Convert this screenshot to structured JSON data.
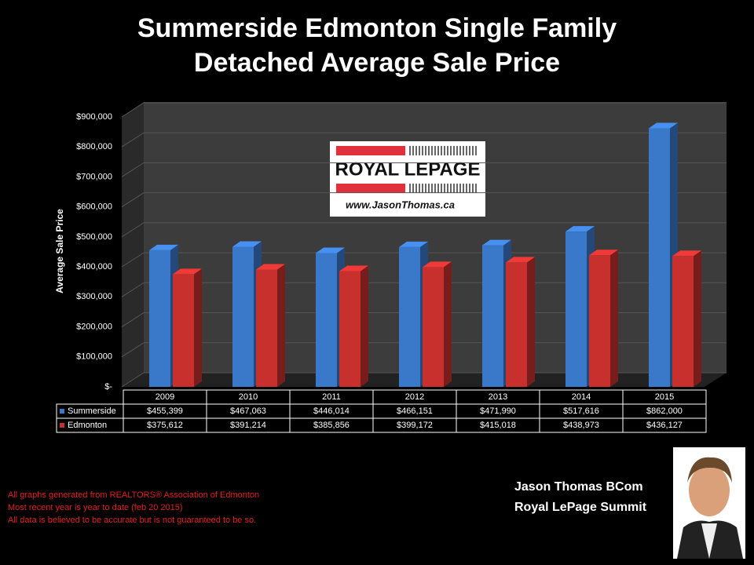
{
  "chart_data": {
    "type": "bar",
    "title": "Summerside Edmonton Single Family Detached Average Sale Price",
    "y_label": "Average Sale Price",
    "categories": [
      "2009",
      "2010",
      "2011",
      "2012",
      "2013",
      "2014",
      "2015"
    ],
    "series": [
      {
        "name": "Summerside",
        "color": "#3a78c9",
        "values": [
          455399,
          467063,
          446014,
          466151,
          471990,
          517616,
          862000
        ],
        "value_labels": [
          "$455,399",
          "$467,063",
          "$446,014",
          "$466,151",
          "$471,990",
          "$517,616",
          "$862,000"
        ]
      },
      {
        "name": "Edmonton",
        "color": "#c8302e",
        "values": [
          375612,
          391214,
          385856,
          399172,
          415018,
          438973,
          436127
        ],
        "value_labels": [
          "$375,612",
          "$391,214",
          "$385,856",
          "$399,172",
          "$415,018",
          "$438,973",
          "$436,127"
        ]
      }
    ],
    "ylim": [
      0,
      900000
    ],
    "yticks": [
      {
        "value": 0,
        "label": "$-"
      },
      {
        "value": 100000,
        "label": "$100,000"
      },
      {
        "value": 200000,
        "label": "$200,000"
      },
      {
        "value": 300000,
        "label": "$300,000"
      },
      {
        "value": 400000,
        "label": "$400,000"
      },
      {
        "value": 500000,
        "label": "$500,000"
      },
      {
        "value": 600000,
        "label": "$600,000"
      },
      {
        "value": 700000,
        "label": "$700,000"
      },
      {
        "value": 800000,
        "label": "$800,000"
      },
      {
        "value": 900000,
        "label": "$900,000"
      }
    ],
    "grid": true
  },
  "logo": {
    "brand": "ROYAL LEPAGE",
    "url": "www.JasonThomas.ca"
  },
  "footnotes": [
    "All graphs generated from REALTORS® Association of Edmonton",
    "Most recent year is year to date (feb 20 2015)",
    "All data is believed to be accurate but is not guaranteed to be so."
  ],
  "signature": [
    "Jason Thomas BCom",
    "Royal LePage Summit"
  ]
}
